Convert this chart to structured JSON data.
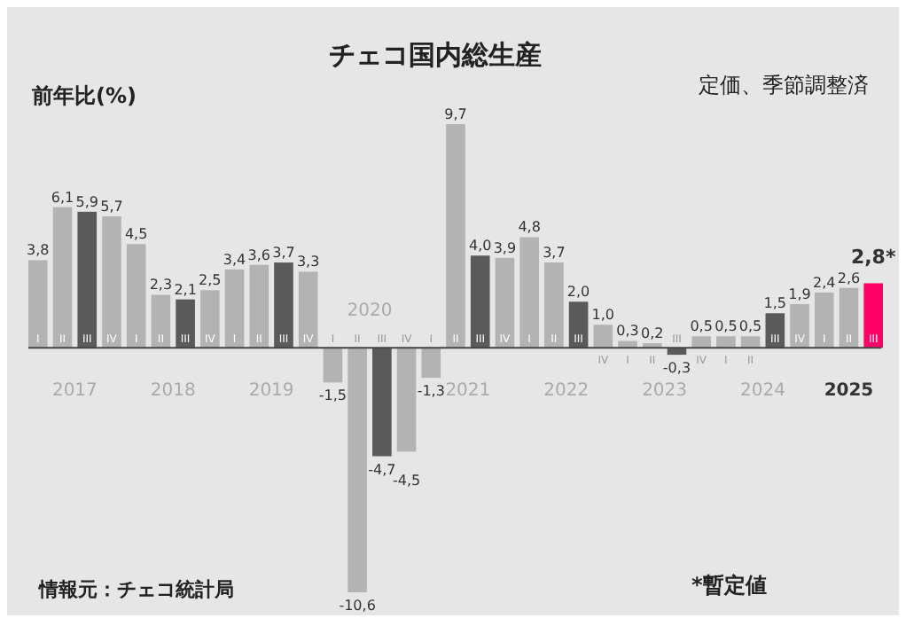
{
  "chart_data": {
    "type": "bar",
    "title": "チェコ国内総生産",
    "subtitle": "定価、季節調整済",
    "ylabel": "前年比(%)",
    "categories": [
      "I",
      "II",
      "III",
      "IV",
      "I",
      "II",
      "III",
      "IV",
      "I",
      "II",
      "III",
      "IV",
      "I",
      "II",
      "III",
      "IV",
      "I",
      "II",
      "III",
      "IV",
      "I",
      "II",
      "III",
      "IV",
      "I",
      "II",
      "III",
      "IV",
      "I",
      "II",
      "III",
      "IV",
      "I",
      "II",
      "III"
    ],
    "values": [
      3.8,
      6.1,
      5.9,
      5.7,
      4.5,
      2.3,
      2.1,
      2.5,
      3.4,
      3.6,
      3.7,
      3.3,
      -1.5,
      -10.6,
      -4.7,
      -4.5,
      -1.3,
      9.7,
      4.0,
      3.9,
      4.8,
      3.7,
      2.0,
      1.0,
      0.3,
      0.2,
      -0.3,
      0.5,
      0.5,
      0.5,
      1.5,
      1.9,
      2.4,
      2.6,
      2.8
    ],
    "value_labels": [
      "3,8",
      "6,1",
      "5,9",
      "5,7",
      "4,5",
      "2,3",
      "2,1",
      "2,5",
      "3,4",
      "3,6",
      "3,7",
      "3,3",
      "-1,5",
      "-10,6",
      "-4,7",
      "-4,5",
      "-1,3",
      "9,7",
      "4,0",
      "3,9",
      "4,8",
      "3,7",
      "2,0",
      "1,0",
      "0,3",
      "0,2",
      "-0,3",
      "0,5",
      "0,5",
      "0,5",
      "1,5",
      "1,9",
      "2,4",
      "2,6",
      "2,8*"
    ],
    "colors": [
      "#b3b3b3",
      "#b3b3b3",
      "#5a5a5a",
      "#b3b3b3",
      "#b3b3b3",
      "#b3b3b3",
      "#5a5a5a",
      "#b3b3b3",
      "#b3b3b3",
      "#b3b3b3",
      "#5a5a5a",
      "#b3b3b3",
      "#b3b3b3",
      "#b3b3b3",
      "#5a5a5a",
      "#b3b3b3",
      "#b3b3b3",
      "#b3b3b3",
      "#5a5a5a",
      "#b3b3b3",
      "#b3b3b3",
      "#b3b3b3",
      "#5a5a5a",
      "#b3b3b3",
      "#b3b3b3",
      "#b3b3b3",
      "#5a5a5a",
      "#b3b3b3",
      "#b3b3b3",
      "#b3b3b3",
      "#5a5a5a",
      "#b3b3b3",
      "#b3b3b3",
      "#b3b3b3",
      "#ff0066"
    ],
    "tick_labels": "x",
    "annotations": [
      "2017",
      "2018",
      "2019",
      "2020",
      "2021",
      "2022",
      "2023",
      "2024",
      "2025",
      "情報元：チェコ統計局",
      "*暫定値"
    ]
  }
}
